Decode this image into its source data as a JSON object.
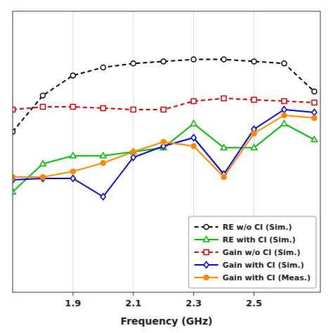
{
  "chart_data": {
    "type": "line",
    "x": [
      1.7,
      1.8,
      1.9,
      2.0,
      2.1,
      2.2,
      2.3,
      2.4,
      2.5,
      2.6,
      2.7
    ],
    "xlabel": "Frequency (GHz)",
    "xlim": [
      1.7,
      2.72
    ],
    "xticks": [
      1.9,
      2.1,
      2.3,
      2.5
    ],
    "ylim": [
      30,
      100
    ],
    "yticks": [],
    "y2lim": [
      -2,
      8
    ],
    "y2ticks": [],
    "grid": true,
    "legend": "lower right",
    "tick_labels": "x",
    "series": [
      {
        "name": "RE w/o CI (Sim.)",
        "color": "#000000",
        "marker": "open-circle",
        "line_style": "dashed",
        "values": [
          70,
          79,
          84,
          86,
          87,
          87.5,
          88,
          88,
          87.5,
          87,
          80
        ]
      },
      {
        "name": "RE with CI (Sim.)",
        "color": "#00bb00",
        "marker": "open-triangle",
        "line_style": "solid",
        "values": [
          55,
          62,
          64,
          64,
          65,
          66,
          72,
          66,
          66,
          72,
          68
        ]
      },
      {
        "name": "Gain w/o CI (Sim.)",
        "color": "#cc0000",
        "marker": "open-square",
        "line_style": "dashed",
        "axis": "y2",
        "values": [
          4.5,
          4.6,
          4.6,
          4.55,
          4.5,
          4.5,
          4.8,
          4.9,
          4.85,
          4.8,
          4.75
        ]
      },
      {
        "name": "Gain with CI (Sim.)",
        "color": "#0000cc",
        "marker": "open-diamond",
        "line_style": "solid",
        "axis": "y2",
        "values": [
          2.0,
          2.05,
          2.05,
          1.4,
          2.8,
          3.2,
          3.5,
          2.2,
          3.8,
          4.5,
          4.4
        ]
      },
      {
        "name": "Gain with CI (Meas.)",
        "color": "#ff8800",
        "marker": "circle",
        "line_style": "solid",
        "axis": "y2",
        "values": [
          2.1,
          2.1,
          2.3,
          2.6,
          3.0,
          3.35,
          3.2,
          2.1,
          3.65,
          4.3,
          4.2
        ]
      }
    ]
  }
}
